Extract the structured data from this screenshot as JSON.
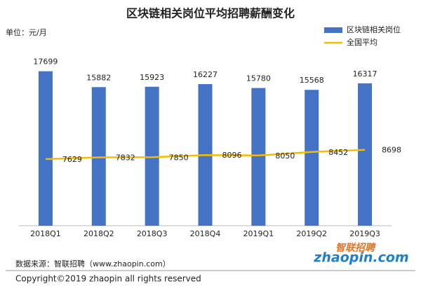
{
  "chart_data": {
    "type": "bar",
    "title": "区块链相关岗位平均招聘薪酬变化",
    "unit_label": "单位：元/月",
    "categories": [
      "2018Q1",
      "2018Q2",
      "2018Q3",
      "2018Q4",
      "2019Q1",
      "2019Q2",
      "2019Q3"
    ],
    "series": [
      {
        "name": "区块链相关岗位",
        "type": "bar",
        "color": "#4472c4",
        "values": [
          17699,
          15882,
          15923,
          16227,
          15780,
          15568,
          16317
        ]
      },
      {
        "name": "全国平均",
        "type": "line",
        "color": "#f5bd00",
        "values": [
          7629,
          7832,
          7850,
          8096,
          8050,
          8452,
          8698
        ]
      }
    ],
    "ylim": [
      0,
      20000
    ],
    "legend": "top-right",
    "source": "数据来源：智联招聘（www.zhaopin.com）",
    "copyright": "Copyright©2019 zhaopin all rights reserved",
    "logo_text": "zhaopin.com",
    "logo_cn": "智联招聘"
  }
}
